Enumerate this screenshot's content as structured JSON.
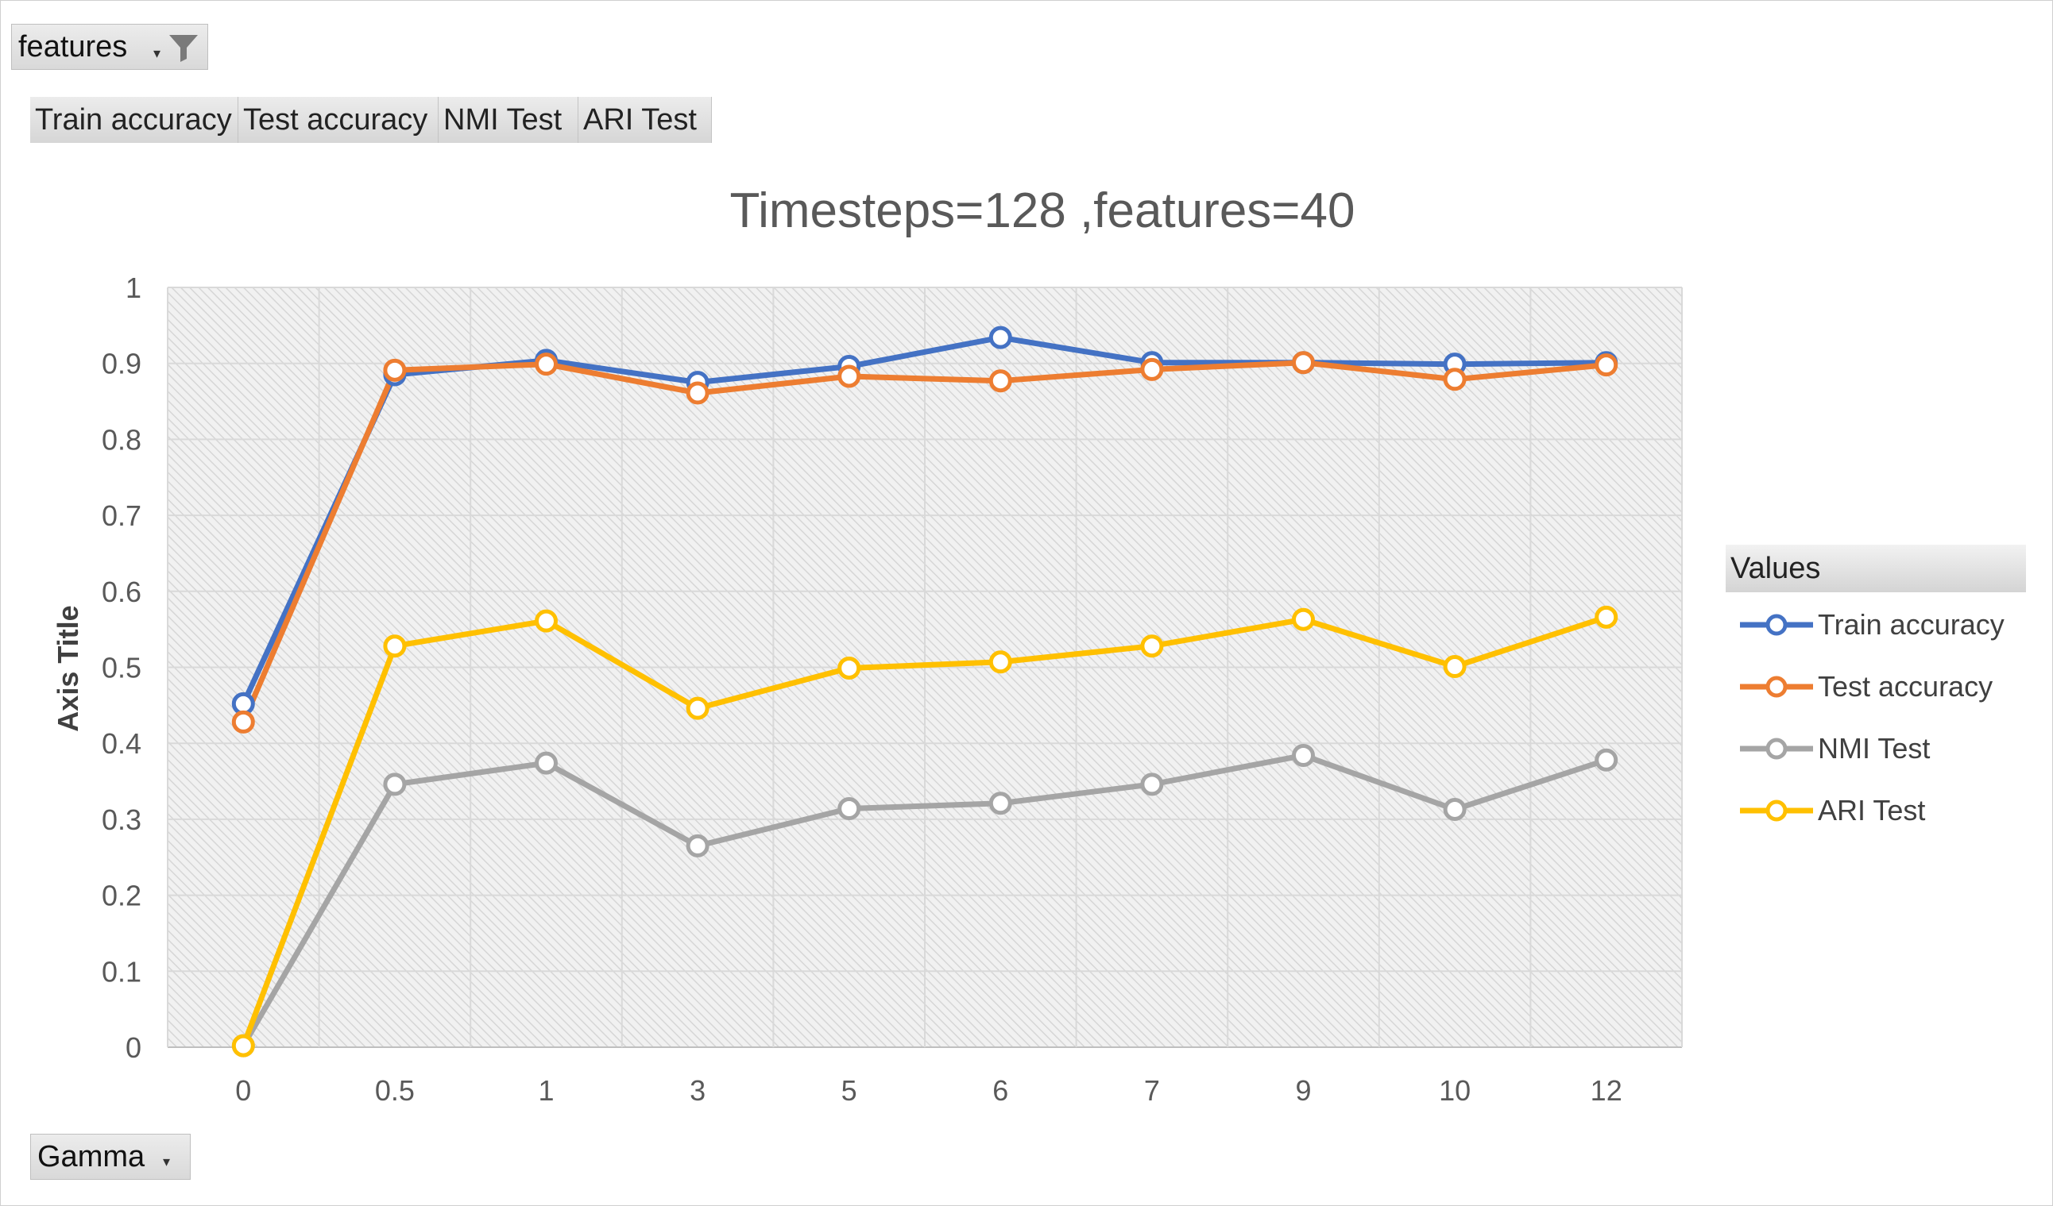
{
  "pivot": {
    "filter_field": "features",
    "row_field": "Gamma",
    "value_fields": [
      "Train accuracy",
      "Test accuracy",
      "NMI Test",
      "ARI Test"
    ],
    "legend_header": "Values"
  },
  "icons": {
    "filter": "funnel-filter-icon",
    "dropdown": "dropdown-arrow-icon"
  },
  "chart_data": {
    "type": "line",
    "title": "Timesteps=128 ,features=40",
    "xlabel": "",
    "ylabel": "Axis Title",
    "categories": [
      "0",
      "0.5",
      "1",
      "3",
      "5",
      "6",
      "7",
      "9",
      "10",
      "12"
    ],
    "ylim": [
      0,
      1
    ],
    "yticks": [
      "0",
      "0.1",
      "0.2",
      "0.3",
      "0.4",
      "0.5",
      "0.6",
      "0.7",
      "0.8",
      "0.9",
      "1"
    ],
    "grid": true,
    "legend_position": "right",
    "series": [
      {
        "name": "Train accuracy",
        "color": "#4472C4",
        "values": [
          0.452,
          0.885,
          0.904,
          0.875,
          0.896,
          0.934,
          0.901,
          0.901,
          0.899,
          0.901
        ]
      },
      {
        "name": "Test accuracy",
        "color": "#ED7D31",
        "values": [
          0.428,
          0.891,
          0.899,
          0.861,
          0.883,
          0.877,
          0.892,
          0.901,
          0.879,
          0.898
        ]
      },
      {
        "name": "NMI Test",
        "color": "#A5A5A5",
        "values": [
          0.002,
          0.346,
          0.374,
          0.265,
          0.314,
          0.321,
          0.346,
          0.384,
          0.313,
          0.378
        ]
      },
      {
        "name": "ARI Test",
        "color": "#FFC000",
        "values": [
          0.002,
          0.528,
          0.561,
          0.446,
          0.499,
          0.507,
          0.528,
          0.563,
          0.501,
          0.566
        ]
      }
    ]
  }
}
